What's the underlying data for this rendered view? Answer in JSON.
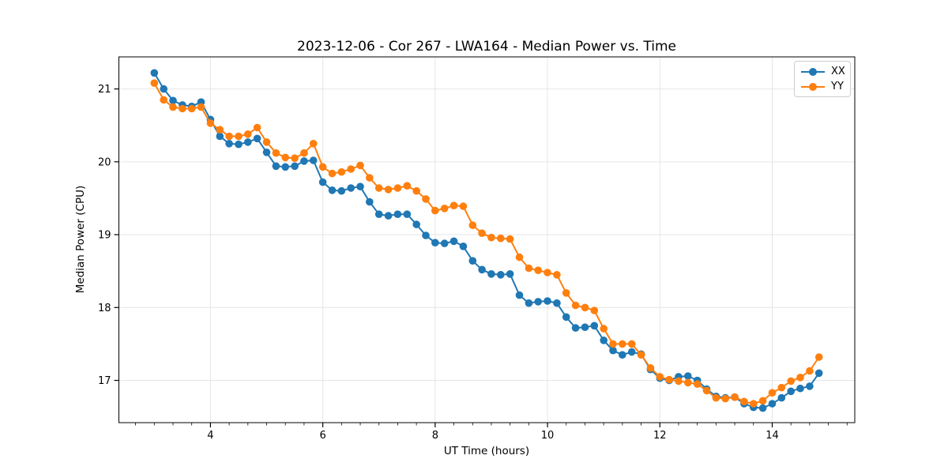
{
  "chart_data": {
    "type": "line",
    "title": "2023-12-06 - Cor 267 - LWA164 - Median Power vs. Time",
    "xlabel": "UT Time (hours)",
    "ylabel": "Median Power (CPU)",
    "xlim": [
      2.37,
      15.47
    ],
    "ylim": [
      16.42,
      21.44
    ],
    "xticks": [
      4,
      6,
      8,
      10,
      12,
      14
    ],
    "yticks": [
      17,
      18,
      19,
      20,
      21
    ],
    "x_minor_tick_step": 0.33333,
    "grid": true,
    "grid_color": "#e6e6e6",
    "legend_position": "upper right",
    "x": [
      3.0,
      3.167,
      3.333,
      3.5,
      3.667,
      3.833,
      4.0,
      4.167,
      4.333,
      4.5,
      4.667,
      4.833,
      5.0,
      5.167,
      5.333,
      5.5,
      5.667,
      5.833,
      6.0,
      6.167,
      6.333,
      6.5,
      6.667,
      6.833,
      7.0,
      7.167,
      7.333,
      7.5,
      7.667,
      7.833,
      8.0,
      8.167,
      8.333,
      8.5,
      8.667,
      8.833,
      9.0,
      9.167,
      9.333,
      9.5,
      9.667,
      9.833,
      10.0,
      10.167,
      10.333,
      10.5,
      10.667,
      10.833,
      11.0,
      11.167,
      11.333,
      11.5,
      11.667,
      11.833,
      12.0,
      12.167,
      12.333,
      12.5,
      12.667,
      12.833,
      13.0,
      13.167,
      13.333,
      13.5,
      13.667,
      13.833,
      14.0,
      14.167,
      14.333,
      14.5,
      14.667,
      14.833
    ],
    "series": [
      {
        "name": "XX",
        "color": "#1f77b4",
        "values": [
          21.22,
          21.0,
          20.84,
          20.78,
          20.76,
          20.82,
          20.58,
          20.35,
          20.25,
          20.24,
          20.27,
          20.32,
          20.13,
          19.94,
          19.93,
          19.94,
          20.01,
          20.02,
          19.72,
          19.61,
          19.6,
          19.64,
          19.66,
          19.45,
          19.28,
          19.26,
          19.28,
          19.28,
          19.14,
          18.99,
          18.89,
          18.88,
          18.91,
          18.84,
          18.64,
          18.52,
          18.46,
          18.45,
          18.46,
          18.17,
          18.06,
          18.08,
          18.09,
          18.06,
          17.87,
          17.72,
          17.73,
          17.75,
          17.55,
          17.41,
          17.35,
          17.39,
          17.36,
          17.15,
          17.03,
          17.0,
          17.05,
          17.06,
          17.0,
          16.88,
          16.78,
          16.76,
          16.77,
          16.68,
          16.63,
          16.62,
          16.68,
          16.76,
          16.85,
          16.89,
          16.92,
          17.1
        ]
      },
      {
        "name": "YY",
        "color": "#ff7f0e",
        "values": [
          21.08,
          20.85,
          20.75,
          20.73,
          20.73,
          20.75,
          20.53,
          20.44,
          20.35,
          20.35,
          20.38,
          20.47,
          20.27,
          20.12,
          20.06,
          20.05,
          20.12,
          20.25,
          19.93,
          19.84,
          19.86,
          19.9,
          19.95,
          19.78,
          19.64,
          19.62,
          19.64,
          19.67,
          19.6,
          19.49,
          19.33,
          19.36,
          19.4,
          19.39,
          19.13,
          19.02,
          18.96,
          18.95,
          18.94,
          18.69,
          18.54,
          18.51,
          18.48,
          18.45,
          18.2,
          18.03,
          18.0,
          17.96,
          17.71,
          17.5,
          17.5,
          17.5,
          17.35,
          17.17,
          17.05,
          17.01,
          16.99,
          16.97,
          16.95,
          16.86,
          16.76,
          16.75,
          16.77,
          16.71,
          16.68,
          16.72,
          16.83,
          16.9,
          16.99,
          17.04,
          17.13,
          17.32
        ]
      }
    ]
  }
}
